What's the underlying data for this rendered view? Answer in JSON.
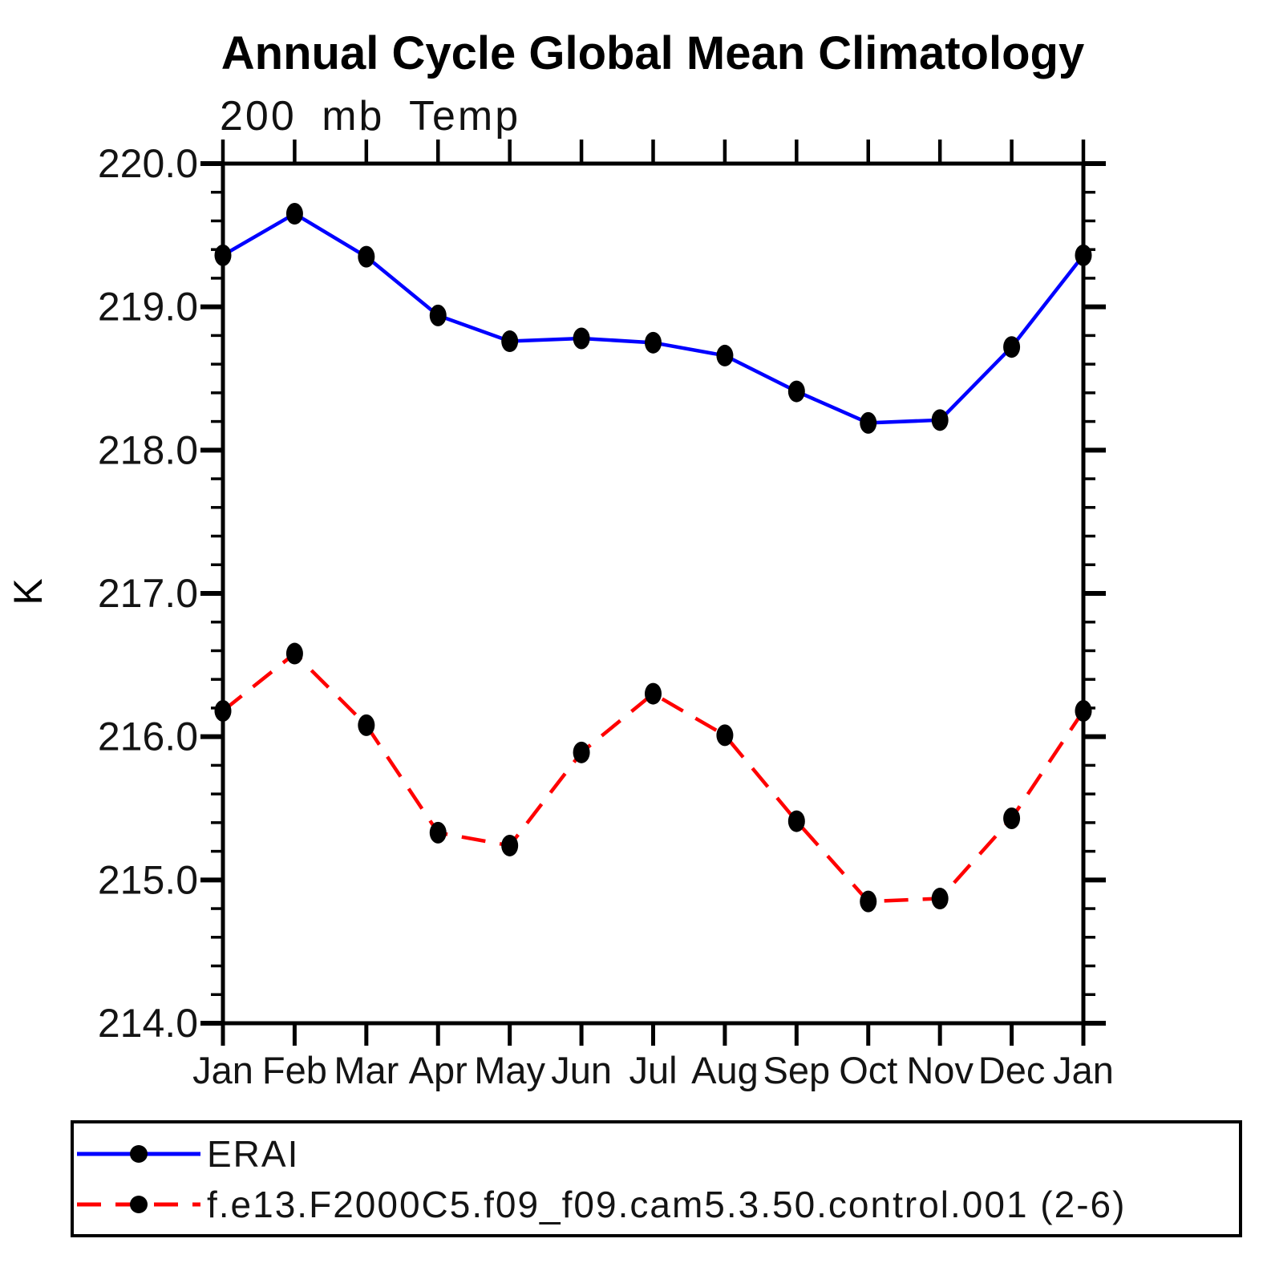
{
  "title": "Annual Cycle Global Mean Climatology",
  "subtitle": "200 mb Temp",
  "y_axis": {
    "label": "K",
    "tick_labels": [
      "220.0",
      "219.0",
      "218.0",
      "217.0",
      "216.0",
      "215.0",
      "214.0"
    ],
    "min": 214.0,
    "max": 220.0,
    "major_step": 1.0,
    "minor_step": 0.2
  },
  "x_axis": {
    "tick_labels": [
      "Jan",
      "Feb",
      "Mar",
      "Apr",
      "May",
      "Jun",
      "Jul",
      "Aug",
      "Sep",
      "Oct",
      "Nov",
      "Dec",
      "Jan"
    ]
  },
  "legend": {
    "items": [
      {
        "label": "ERAI",
        "color": "#0000ff",
        "line_style": "solid",
        "marker": "filled-circle"
      },
      {
        "label": "f.e13.F2000C5.f09_f09.cam5.3.50.control.001 (2-6)",
        "color": "#ff0000",
        "line_style": "dashed",
        "marker": "filled-circle"
      }
    ]
  },
  "colors": {
    "erai_line": "#0000ff",
    "model_line": "#ff0000",
    "marker": "#000000",
    "axis": "#000000",
    "background": "#ffffff"
  },
  "chart_data": {
    "type": "line",
    "title": "Annual Cycle Global Mean Climatology",
    "subtitle": "200 mb Temp",
    "xlabel": "",
    "ylabel": "K",
    "ylim": [
      214.0,
      220.0
    ],
    "grid": false,
    "legend_position": "bottom",
    "x_categories": [
      "Jan",
      "Feb",
      "Mar",
      "Apr",
      "May",
      "Jun",
      "Jul",
      "Aug",
      "Sep",
      "Oct",
      "Nov",
      "Dec",
      "Jan"
    ],
    "series": [
      {
        "name": "ERAI",
        "color": "#0000ff",
        "line_style": "solid",
        "marker": "filled-circle",
        "values": [
          219.36,
          219.65,
          219.35,
          218.94,
          218.76,
          218.78,
          218.75,
          218.66,
          218.41,
          218.19,
          218.21,
          218.72,
          219.36
        ]
      },
      {
        "name": "f.e13.F2000C5.f09_f09.cam5.3.50.control.001 (2-6)",
        "color": "#ff0000",
        "line_style": "dashed",
        "marker": "filled-circle",
        "values": [
          216.18,
          216.58,
          216.08,
          215.33,
          215.24,
          215.89,
          216.3,
          216.01,
          215.41,
          214.85,
          214.87,
          215.43,
          216.18
        ]
      }
    ]
  }
}
